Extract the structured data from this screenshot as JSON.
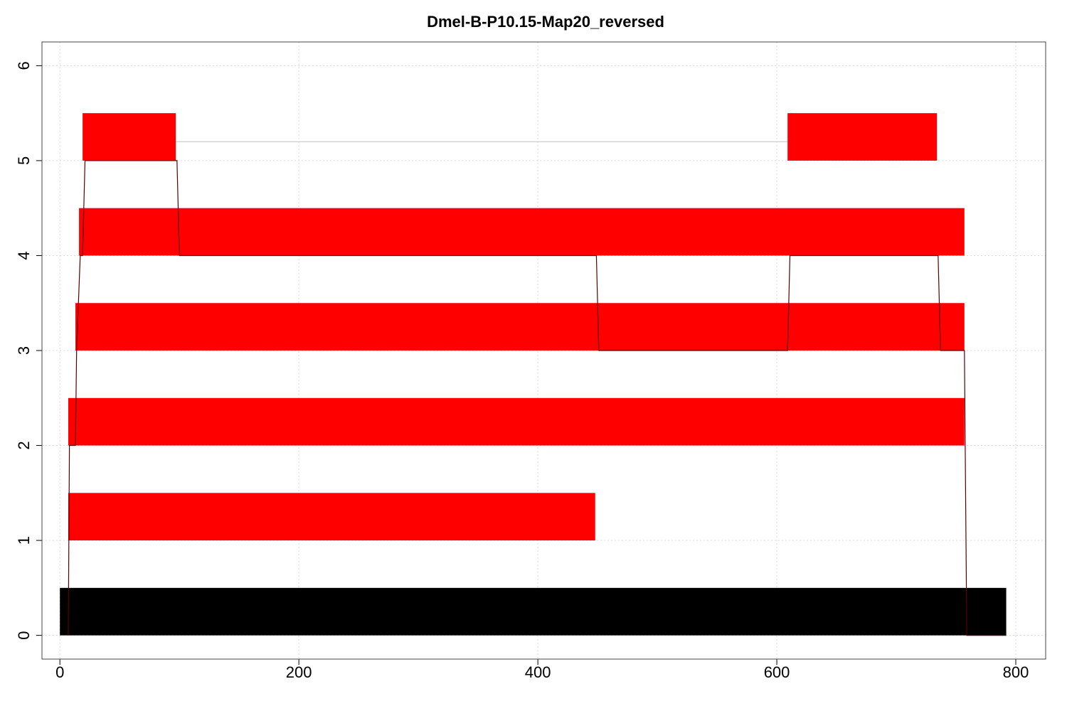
{
  "chart_data": {
    "type": "bar",
    "title": "Dmel-B-P10.15-Map20_reversed",
    "xlabel": "",
    "ylabel": "",
    "xlim": [
      -15,
      825
    ],
    "ylim": [
      -0.25,
      6.25
    ],
    "xticks": [
      0,
      200,
      400,
      600,
      800
    ],
    "yticks": [
      0,
      1,
      2,
      3,
      4,
      5,
      6
    ],
    "grid": true,
    "colors": {
      "reference": "#000000",
      "segment": "#ff0000",
      "path": "#5a0000",
      "connector": "#c0c0c0"
    },
    "reference_bar": {
      "start": 0,
      "end": 792,
      "level": 0
    },
    "segments": [
      {
        "level": 1,
        "start": 7,
        "end": 448
      },
      {
        "level": 2,
        "start": 7,
        "end": 757
      },
      {
        "level": 3,
        "start": 13,
        "end": 757
      },
      {
        "level": 4,
        "start": 16,
        "end": 757
      },
      {
        "level": 5,
        "start": 19,
        "end": 97
      },
      {
        "level": 5,
        "start": 609,
        "end": 734
      }
    ],
    "connectors": [
      {
        "level": 5.2,
        "start": 97,
        "end": 609
      }
    ],
    "path": [
      [
        7,
        0
      ],
      [
        8,
        2
      ],
      [
        13,
        2
      ],
      [
        14,
        3
      ],
      [
        17,
        4
      ],
      [
        19,
        4
      ],
      [
        21,
        5
      ],
      [
        98,
        5
      ],
      [
        100,
        4
      ],
      [
        449,
        4
      ],
      [
        451,
        3
      ],
      [
        609,
        3
      ],
      [
        611,
        4
      ],
      [
        735,
        4
      ],
      [
        737,
        3
      ],
      [
        757,
        3
      ],
      [
        759,
        0
      ],
      [
        792,
        0
      ]
    ]
  }
}
